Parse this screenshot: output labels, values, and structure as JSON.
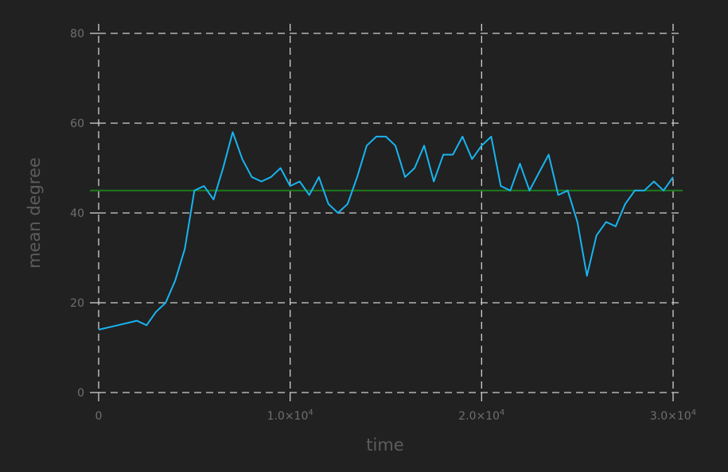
{
  "chart_data": {
    "type": "line",
    "xlabel": "time",
    "ylabel": "mean degree",
    "xlim": [
      0,
      30000
    ],
    "ylim": [
      0,
      80
    ],
    "grid": true,
    "x_ticks": [
      {
        "value": 0,
        "mantissa": "0",
        "exponent": ""
      },
      {
        "value": 10000,
        "mantissa": "1.0×10",
        "exponent": "4"
      },
      {
        "value": 20000,
        "mantissa": "2.0×10",
        "exponent": "4"
      },
      {
        "value": 30000,
        "mantissa": "3.0×10",
        "exponent": "4"
      }
    ],
    "y_ticks": [
      0,
      20,
      40,
      60,
      80
    ],
    "reference_line": {
      "y": 45,
      "color": "#1e7a1e"
    },
    "series": [
      {
        "color": "#18b4f0",
        "x": [
          0,
          1000,
          2000,
          2500,
          3000,
          3500,
          4000,
          4500,
          5000,
          5500,
          6000,
          6500,
          7000,
          7500,
          8000,
          8500,
          9000,
          9500,
          10000,
          10500,
          11000,
          11500,
          12000,
          12500,
          13000,
          13500,
          14000,
          14500,
          15000,
          15500,
          16000,
          16500,
          17000,
          17500,
          18000,
          18500,
          19000,
          19500,
          20000,
          20500,
          21000,
          21500,
          22000,
          22500,
          23000,
          23500,
          24000,
          24500,
          25000,
          25500,
          26000,
          26500,
          27000,
          27500,
          28000,
          28500,
          29000,
          29500,
          30000
        ],
        "y": [
          14,
          15,
          16,
          15,
          18,
          20,
          25,
          32,
          45,
          46,
          43,
          50,
          58,
          52,
          48,
          47,
          48,
          50,
          46,
          47,
          44,
          48,
          42,
          40,
          42,
          48,
          55,
          57,
          57,
          55,
          48,
          50,
          55,
          47,
          53,
          53,
          57,
          52,
          55,
          57,
          46,
          45,
          51,
          45,
          49,
          53,
          44,
          45,
          38,
          26,
          35,
          38,
          37,
          42,
          45,
          45,
          47,
          45,
          48
        ]
      }
    ]
  }
}
